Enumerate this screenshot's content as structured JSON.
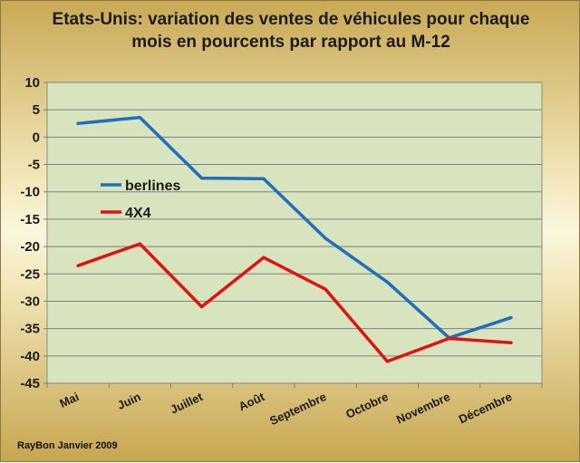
{
  "chart_data": {
    "type": "line",
    "title_lines": [
      "Etats-Unis: variation des ventes de véhicules pour chaque",
      "mois en pourcents par rapport au M-12"
    ],
    "credit": "RayBon Janvier 2009",
    "categories": [
      "Mai",
      "Juin",
      "Juillet",
      "Août",
      "Septembre",
      "Octobre",
      "Novembre",
      "Décembre"
    ],
    "yticks": [
      "10",
      "5",
      "0",
      "-5",
      "-10",
      "-15",
      "-20",
      "-25",
      "-30",
      "-35",
      "-40",
      "-45"
    ],
    "ylim": [
      -45,
      10
    ],
    "grid": true,
    "legend_position": "left",
    "plot_background": "#d7e4bd",
    "series": [
      {
        "name": "berlines",
        "color": "#1f6fbf",
        "values": [
          2.5,
          3.6,
          -7.5,
          -7.6,
          -18.5,
          -26.5,
          -36.7,
          -33.0
        ]
      },
      {
        "name": "4X4",
        "color": "#e01212",
        "values": [
          -23.5,
          -19.5,
          -31.0,
          -22.0,
          -27.8,
          -41.0,
          -36.8,
          -37.6
        ]
      }
    ]
  }
}
